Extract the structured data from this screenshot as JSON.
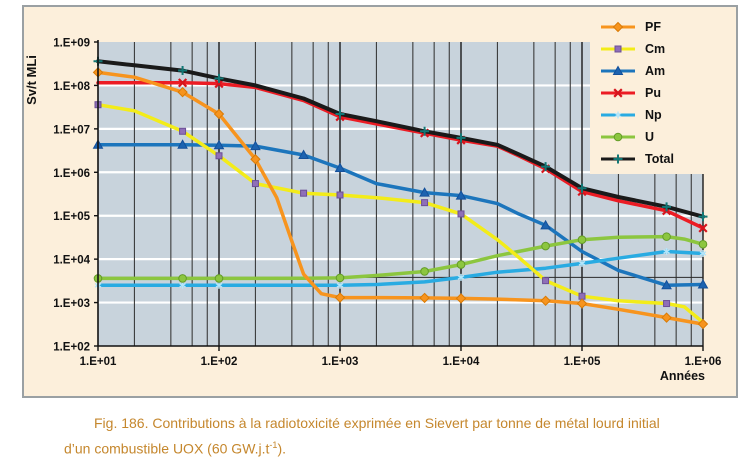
{
  "figure": {
    "background": "#FCEFDB",
    "border_color": "#9AA0A3",
    "caption": {
      "color": "#C5872D",
      "line1": "Fig. 186. Contributions à la radiotoxicité exprimée en Sievert par tonne de métal lourd initial",
      "line2_pre": "d’un combustible UOX (60 GW.j.t",
      "line2_sup": "-1",
      "line2_post": ")."
    }
  },
  "chart_data": {
    "type": "line",
    "x_scale": "log",
    "y_scale": "log",
    "xlim": [
      10,
      1000000
    ],
    "ylim": [
      100,
      1000000000
    ],
    "xlabel": "Années",
    "ylabel": "Sv/t MLi",
    "x_ticks": [
      "1.E+01",
      "1.E+02",
      "1.E+03",
      "1.E+04",
      "1.E+05",
      "1.E+06"
    ],
    "y_ticks": [
      "1.E+09",
      "1.E+08",
      "1.E+07",
      "1.E+06",
      "1.E+05",
      "1.E+04",
      "1.E+03",
      "1.E+02"
    ],
    "legend_position": "top-right",
    "grid": {
      "plot_background": "#C8D3DC",
      "h_major_color": "#FFFFFF",
      "v_minor_color": "#3B3B3B",
      "v_major_color": "#1A1A1A",
      "v_minor_multiples": [
        2,
        4,
        6,
        8
      ]
    },
    "reference_line_y": 3800,
    "series": [
      {
        "name": "PF",
        "color": "#F7941E",
        "marker": "diamond",
        "marker_color": "#F7941E",
        "marker_stroke": "#D97B06",
        "width": 3.5,
        "points": [
          [
            10,
            200000000.0
          ],
          [
            20,
            155000000.0
          ],
          [
            50,
            70000000.0
          ],
          [
            100,
            22000000.0
          ],
          [
            200,
            2000000.0
          ],
          [
            300,
            260000.0
          ],
          [
            400,
            26000.0
          ],
          [
            500,
            4500.0
          ],
          [
            700,
            1600.0
          ],
          [
            1000,
            1300.0
          ],
          [
            2000,
            1300.0
          ],
          [
            5000,
            1280.0
          ],
          [
            10000,
            1250.0
          ],
          [
            20000,
            1200.0
          ],
          [
            50000,
            1100.0
          ],
          [
            100000,
            950
          ],
          [
            200000,
            700
          ],
          [
            500000,
            450
          ],
          [
            1000000,
            320
          ]
        ],
        "marker_x": [
          10,
          50,
          100,
          200,
          1000,
          5000,
          10000,
          50000,
          100000,
          500000,
          1000000
        ]
      },
      {
        "name": "Cm",
        "color": "#F3EC19",
        "marker": "square",
        "marker_color": "#8F6FB8",
        "marker_stroke": "#6B4F96",
        "width": 3.5,
        "points": [
          [
            10,
            36000000.0
          ],
          [
            20,
            26000000.0
          ],
          [
            50,
            8800000.0
          ],
          [
            100,
            2400000.0
          ],
          [
            200,
            550000.0
          ],
          [
            500,
            330000.0
          ],
          [
            1000,
            300000.0
          ],
          [
            2000,
            260000.0
          ],
          [
            5000,
            200000.0
          ],
          [
            10000,
            110000.0
          ],
          [
            20000,
            28000.0
          ],
          [
            30000,
            11000.0
          ],
          [
            50000,
            3200.0
          ],
          [
            100000,
            1400.0
          ],
          [
            200000,
            1100.0
          ],
          [
            500000,
            950
          ],
          [
            700000,
            800
          ],
          [
            1000000,
            350
          ]
        ],
        "marker_x": [
          10,
          50,
          100,
          200,
          500,
          1000,
          5000,
          10000,
          50000,
          100000,
          500000
        ]
      },
      {
        "name": "Am",
        "color": "#1C75BC",
        "marker": "triangle",
        "marker_color": "#1C63B0",
        "marker_stroke": "#14509A",
        "width": 3.5,
        "points": [
          [
            10,
            4300000.0
          ],
          [
            50,
            4300000.0
          ],
          [
            100,
            4200000.0
          ],
          [
            200,
            4000000.0
          ],
          [
            500,
            2500000.0
          ],
          [
            1000,
            1250000.0
          ],
          [
            2000,
            550000.0
          ],
          [
            5000,
            340000.0
          ],
          [
            10000,
            290000.0
          ],
          [
            20000,
            190000.0
          ],
          [
            30000,
            110000.0
          ],
          [
            50000,
            60000.0
          ],
          [
            100000,
            15000.0
          ],
          [
            200000,
            5500.0
          ],
          [
            500000,
            2500.0
          ],
          [
            1000000,
            2600.0
          ]
        ],
        "marker_x": [
          10,
          50,
          100,
          200,
          500,
          1000,
          5000,
          10000,
          50000,
          500000,
          1000000
        ]
      },
      {
        "name": "Pu",
        "color": "#EC1C24",
        "marker": "x",
        "marker_color": "#D6151D",
        "marker_stroke": "#D6151D",
        "width": 3.5,
        "points": [
          [
            10,
            115000000.0
          ],
          [
            50,
            115000000.0
          ],
          [
            100,
            110000000.0
          ],
          [
            200,
            90000000.0
          ],
          [
            500,
            45000000.0
          ],
          [
            1000,
            19000000.0
          ],
          [
            2000,
            13000000.0
          ],
          [
            5000,
            8000000.0
          ],
          [
            10000,
            5500000.0
          ],
          [
            20000,
            4000000.0
          ],
          [
            30000,
            2400000.0
          ],
          [
            50000,
            1200000.0
          ],
          [
            100000,
            360000.0
          ],
          [
            200000,
            220000.0
          ],
          [
            500000,
            130000.0
          ],
          [
            1000000,
            52000.0
          ]
        ],
        "marker_x": [
          50,
          100,
          1000,
          5000,
          10000,
          50000,
          100000,
          500000,
          1000000
        ]
      },
      {
        "name": "Np",
        "color": "#29ABE2",
        "marker": "asterisk",
        "marker_color": "#B5E6FA",
        "marker_stroke": "#B5E6FA",
        "width": 3.5,
        "points": [
          [
            10,
            2500.0
          ],
          [
            50,
            2500.0
          ],
          [
            100,
            2500.0
          ],
          [
            200,
            2500.0
          ],
          [
            500,
            2500.0
          ],
          [
            1000,
            2500.0
          ],
          [
            2000,
            2600.0
          ],
          [
            5000,
            3000.0
          ],
          [
            10000,
            3800.0
          ],
          [
            20000,
            5000.0
          ],
          [
            50000,
            6200.0
          ],
          [
            100000,
            8000.0
          ],
          [
            200000,
            10500.0
          ],
          [
            500000,
            15000.0
          ],
          [
            1000000,
            13500.0
          ]
        ],
        "marker_x": [
          10,
          50,
          100,
          1000,
          10000,
          100000,
          500000,
          1000000
        ]
      },
      {
        "name": "U",
        "color": "#8CC63F",
        "marker": "circle",
        "marker_color": "#8CC63F",
        "marker_stroke": "#639B27",
        "width": 3.5,
        "points": [
          [
            10,
            3600.0
          ],
          [
            50,
            3600.0
          ],
          [
            100,
            3600.0
          ],
          [
            200,
            3600.0
          ],
          [
            500,
            3650.0
          ],
          [
            1000,
            3700.0
          ],
          [
            2000,
            4200.0
          ],
          [
            5000,
            5200.0
          ],
          [
            10000,
            7500.0
          ],
          [
            20000,
            12000.0
          ],
          [
            50000,
            20000.0
          ],
          [
            100000,
            28000.0
          ],
          [
            200000,
            32000.0
          ],
          [
            500000,
            33000.0
          ],
          [
            700000,
            29000.0
          ],
          [
            1000000,
            22000.0
          ]
        ],
        "marker_x": [
          10,
          50,
          100,
          1000,
          5000,
          10000,
          50000,
          100000,
          500000,
          1000000
        ]
      },
      {
        "name": "Total",
        "color": "#1A1A1A",
        "marker": "plus",
        "marker_color": "#127876",
        "marker_stroke": "#127876",
        "width": 4,
        "points": [
          [
            10,
            360000000.0
          ],
          [
            20,
            290000000.0
          ],
          [
            50,
            220000000.0
          ],
          [
            100,
            145000000.0
          ],
          [
            200,
            100000000.0
          ],
          [
            500,
            50000000.0
          ],
          [
            1000,
            22000000.0
          ],
          [
            2000,
            15000000.0
          ],
          [
            5000,
            8800000.0
          ],
          [
            10000,
            6200000.0
          ],
          [
            20000,
            4300000.0
          ],
          [
            30000,
            2600000.0
          ],
          [
            50000,
            1350000.0
          ],
          [
            100000,
            430000.0
          ],
          [
            200000,
            270000.0
          ],
          [
            500000,
            160000.0
          ],
          [
            1000000,
            95000.0
          ]
        ],
        "marker_x": [
          10,
          50,
          100,
          1000,
          5000,
          10000,
          50000,
          100000,
          500000,
          1000000
        ]
      }
    ],
    "draw_order": [
      2,
      4,
      5,
      1,
      3,
      0,
      6
    ]
  }
}
